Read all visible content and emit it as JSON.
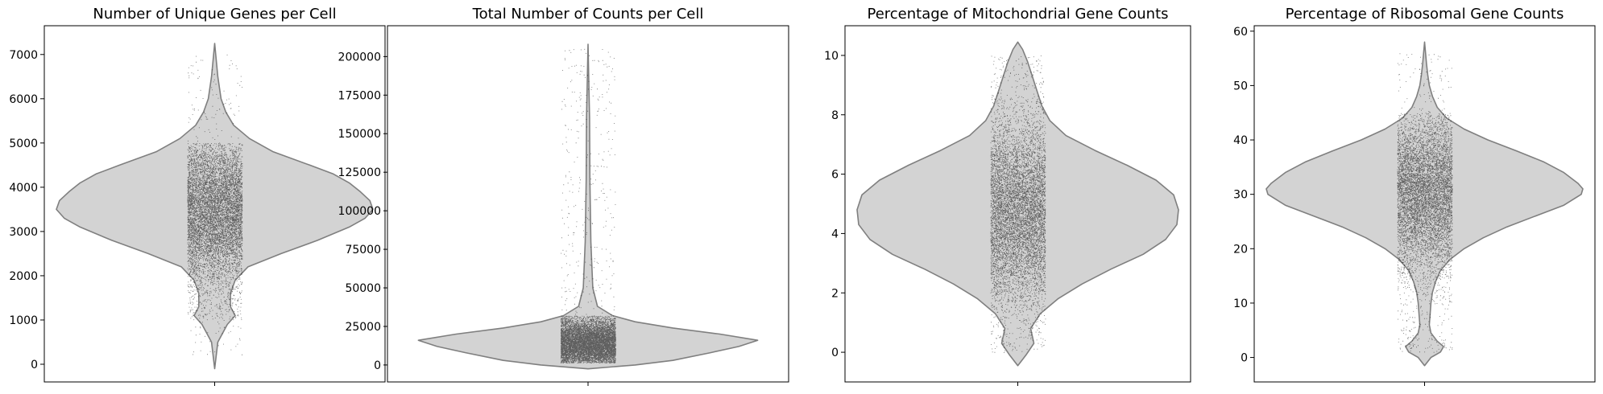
{
  "chart_data": [
    {
      "type": "violin",
      "title": "Number of Unique Genes per Cell",
      "xlabel": "",
      "ylabel": "",
      "ylim": [
        -400,
        7650
      ],
      "yticks": [
        0,
        1000,
        2000,
        3000,
        4000,
        5000,
        6000,
        7000
      ],
      "ytick_labels": [
        "0",
        "1000",
        "2000",
        "3000",
        "4000",
        "5000",
        "6000",
        "7000"
      ],
      "density": {
        "y": [
          -100,
          500,
          900,
          1100,
          1300,
          1600,
          1900,
          2200,
          2500,
          2800,
          3100,
          3300,
          3500,
          3700,
          3900,
          4100,
          4300,
          4500,
          4800,
          5100,
          5400,
          5700,
          6000,
          6500,
          7250
        ],
        "width": [
          0,
          0.02,
          0.08,
          0.13,
          0.1,
          0.1,
          0.13,
          0.21,
          0.42,
          0.65,
          0.85,
          0.95,
          1.0,
          0.98,
          0.92,
          0.85,
          0.75,
          0.6,
          0.37,
          0.22,
          0.12,
          0.07,
          0.04,
          0.02,
          0
        ]
      },
      "strip": {
        "min": 200,
        "max": 7000,
        "core_min": 1000,
        "core_max": 5000,
        "dense_min": 2000,
        "dense_max": 4700,
        "dense_center": 3400
      }
    },
    {
      "type": "violin",
      "title": "Total Number of Counts per Cell",
      "xlabel": "",
      "ylabel": "",
      "ylim": [
        -11000,
        220000
      ],
      "yticks": [
        0,
        25000,
        50000,
        75000,
        100000,
        125000,
        150000,
        175000,
        200000
      ],
      "ytick_labels": [
        "0",
        "25000",
        "50000",
        "75000",
        "100000",
        "125000",
        "150000",
        "175000",
        "200000"
      ],
      "density": {
        "y": [
          -2500,
          0,
          3000,
          8000,
          12000,
          16000,
          20000,
          24000,
          28000,
          32000,
          38000,
          50000,
          80000,
          120000,
          160000,
          208000
        ],
        "width": [
          0,
          0.25,
          0.45,
          0.65,
          0.8,
          0.9,
          0.7,
          0.45,
          0.25,
          0.13,
          0.05,
          0.025,
          0.015,
          0.01,
          0.008,
          0
        ]
      },
      "strip": {
        "min": 1500,
        "max": 205000,
        "core_min": 1500,
        "core_max": 32000,
        "dense_min": 3000,
        "dense_max": 28000,
        "dense_center": 14000
      }
    },
    {
      "type": "violin",
      "title": "Percentage of Mitochondrial Gene Counts",
      "xlabel": "",
      "ylabel": "",
      "ylim": [
        -1.0,
        11.0
      ],
      "yticks": [
        0,
        2,
        4,
        6,
        8,
        10
      ],
      "ytick_labels": [
        "0",
        "2",
        "4",
        "6",
        "8",
        "10"
      ],
      "density": {
        "y": [
          -0.45,
          -0.1,
          0.3,
          0.8,
          1.3,
          1.8,
          2.3,
          2.8,
          3.3,
          3.8,
          4.3,
          4.8,
          5.3,
          5.8,
          6.3,
          6.8,
          7.3,
          7.8,
          8.3,
          8.8,
          9.3,
          9.8,
          10.2,
          10.45
        ],
        "width": [
          0,
          0.05,
          0.1,
          0.08,
          0.14,
          0.25,
          0.4,
          0.58,
          0.78,
          0.92,
          0.99,
          1.0,
          0.97,
          0.86,
          0.68,
          0.48,
          0.3,
          0.2,
          0.15,
          0.12,
          0.09,
          0.06,
          0.03,
          0
        ]
      },
      "strip": {
        "min": 0.0,
        "max": 10.0,
        "core_min": 0.0,
        "core_max": 10.0,
        "dense_min": 2.3,
        "dense_max": 7.3,
        "dense_center": 4.7
      }
    },
    {
      "type": "violin",
      "title": "Percentage of Ribosomal Gene Counts",
      "xlabel": "",
      "ylabel": "",
      "ylim": [
        -4.5,
        61.0
      ],
      "yticks": [
        0,
        10,
        20,
        30,
        40,
        50,
        60
      ],
      "ytick_labels": [
        "0",
        "10",
        "20",
        "30",
        "40",
        "50",
        "60"
      ],
      "density": {
        "y": [
          -1.5,
          0,
          1,
          2,
          3,
          4.5,
          6,
          8,
          10,
          12,
          14,
          16,
          18,
          20,
          22,
          24,
          26,
          28,
          30,
          31,
          32,
          34,
          36,
          38,
          40,
          42,
          44,
          46,
          48,
          50,
          52,
          54,
          58
        ],
        "width": [
          0,
          0.04,
          0.1,
          0.12,
          0.08,
          0.04,
          0.03,
          0.035,
          0.04,
          0.05,
          0.07,
          0.1,
          0.16,
          0.25,
          0.37,
          0.52,
          0.7,
          0.88,
          0.99,
          1.0,
          0.97,
          0.88,
          0.75,
          0.58,
          0.4,
          0.25,
          0.14,
          0.08,
          0.05,
          0.03,
          0.02,
          0.012,
          0
        ]
      },
      "strip": {
        "min": 1.0,
        "max": 56.0,
        "core_min": 1.0,
        "core_max": 45.0,
        "dense_min": 17.0,
        "dense_max": 42.0,
        "dense_center": 30.0
      }
    }
  ]
}
